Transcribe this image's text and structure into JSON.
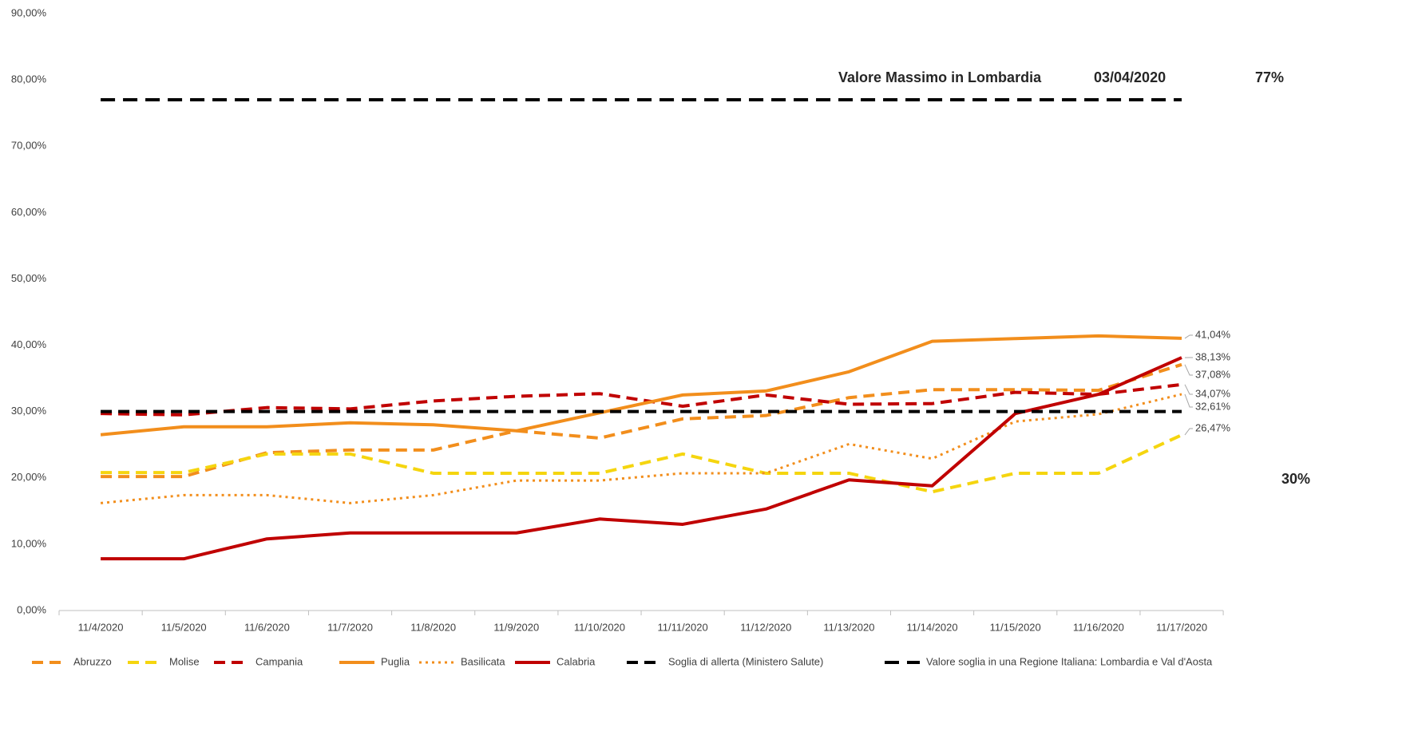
{
  "chart_data": {
    "type": "line",
    "categories": [
      "11/4/2020",
      "11/5/2020",
      "11/6/2020",
      "11/7/2020",
      "11/8/2020",
      "11/9/2020",
      "11/10/2020",
      "11/11/2020",
      "11/12/2020",
      "11/13/2020",
      "11/14/2020",
      "11/15/2020",
      "11/16/2020",
      "11/17/2020"
    ],
    "ylim": [
      0,
      90
    ],
    "yticks": [
      {
        "value": 0,
        "label": "0,00%"
      },
      {
        "value": 10,
        "label": "10,00%"
      },
      {
        "value": 20,
        "label": "20,00%"
      },
      {
        "value": 30,
        "label": "30,00%"
      },
      {
        "value": 40,
        "label": "40,00%"
      },
      {
        "value": 50,
        "label": "50,00%"
      },
      {
        "value": 60,
        "label": "60,00%"
      },
      {
        "value": 70,
        "label": "70,00%"
      },
      {
        "value": 80,
        "label": "80,00%"
      },
      {
        "value": 90,
        "label": "90,00%"
      }
    ],
    "grid": false,
    "legend": "bottom",
    "series": [
      {
        "name": "Abruzzo",
        "color": "#f28e1c",
        "dash": "dashed",
        "values": [
          20.2,
          20.2,
          23.8,
          24.2,
          24.2,
          27.1,
          26.0,
          28.9,
          29.4,
          32.1,
          33.3,
          33.3,
          33.2,
          37.08
        ],
        "value_labels": [
          null,
          null,
          null,
          null,
          null,
          null,
          null,
          null,
          null,
          null,
          null,
          null,
          null,
          "37,08%"
        ]
      },
      {
        "name": "Molise",
        "color": "#f5d50f",
        "dash": "dashed",
        "values": [
          20.8,
          20.8,
          23.6,
          23.6,
          20.7,
          20.7,
          20.7,
          23.6,
          20.7,
          20.7,
          17.9,
          20.7,
          20.7,
          26.47
        ],
        "value_labels": [
          null,
          null,
          null,
          null,
          null,
          null,
          null,
          null,
          null,
          null,
          null,
          null,
          null,
          "26,47%"
        ]
      },
      {
        "name": "Campania",
        "color": "#c00000",
        "dash": "dashed",
        "values": [
          29.7,
          29.5,
          30.6,
          30.4,
          31.6,
          32.3,
          32.7,
          30.8,
          32.5,
          31.1,
          31.2,
          32.9,
          32.6,
          34.07
        ],
        "value_labels": [
          null,
          null,
          null,
          null,
          null,
          null,
          null,
          null,
          null,
          null,
          null,
          null,
          null,
          "34,07%"
        ]
      },
      {
        "name": "Puglia",
        "color": "#f28e1c",
        "dash": "solid",
        "values": [
          26.5,
          27.7,
          27.7,
          28.3,
          28.0,
          27.1,
          29.8,
          32.5,
          33.1,
          36.0,
          40.6,
          41.0,
          41.4,
          41.04
        ],
        "value_labels": [
          null,
          null,
          null,
          null,
          null,
          null,
          null,
          null,
          null,
          null,
          null,
          null,
          null,
          "41,04%"
        ]
      },
      {
        "name": "Basilicata",
        "color": "#f28e1c",
        "dash": "dotted",
        "values": [
          16.2,
          17.4,
          17.4,
          16.2,
          17.4,
          19.6,
          19.6,
          20.7,
          20.7,
          25.1,
          22.9,
          28.5,
          29.6,
          32.61
        ],
        "value_labels": [
          null,
          null,
          null,
          null,
          null,
          null,
          null,
          null,
          null,
          null,
          null,
          null,
          null,
          "32,61%"
        ]
      },
      {
        "name": "Calabria",
        "color": "#c00000",
        "dash": "solid",
        "values": [
          7.8,
          7.8,
          10.8,
          11.7,
          11.7,
          11.7,
          13.8,
          13.0,
          15.3,
          19.7,
          18.8,
          29.7,
          32.6,
          38.13
        ],
        "value_labels": [
          null,
          null,
          null,
          null,
          null,
          null,
          null,
          null,
          null,
          null,
          null,
          null,
          null,
          "38,13%"
        ]
      },
      {
        "name": "Soglia di allerta (Ministero Salute)",
        "color": "#000000",
        "dash": "dashed",
        "values": [
          30,
          30,
          30,
          30,
          30,
          30,
          30,
          30,
          30,
          30,
          30,
          30,
          30,
          30
        ]
      },
      {
        "name": "Valore soglia in una Regione Italiana: Lombardia e Val d'Aosta",
        "color": "#000000",
        "dash": "longdash",
        "values": [
          77,
          77,
          77,
          77,
          77,
          77,
          77,
          77,
          77,
          77,
          77,
          77,
          77,
          77
        ]
      }
    ],
    "annotations": [
      "Valore Massimo in Lombardia",
      "03/04/2020",
      "77%",
      "30%"
    ]
  }
}
